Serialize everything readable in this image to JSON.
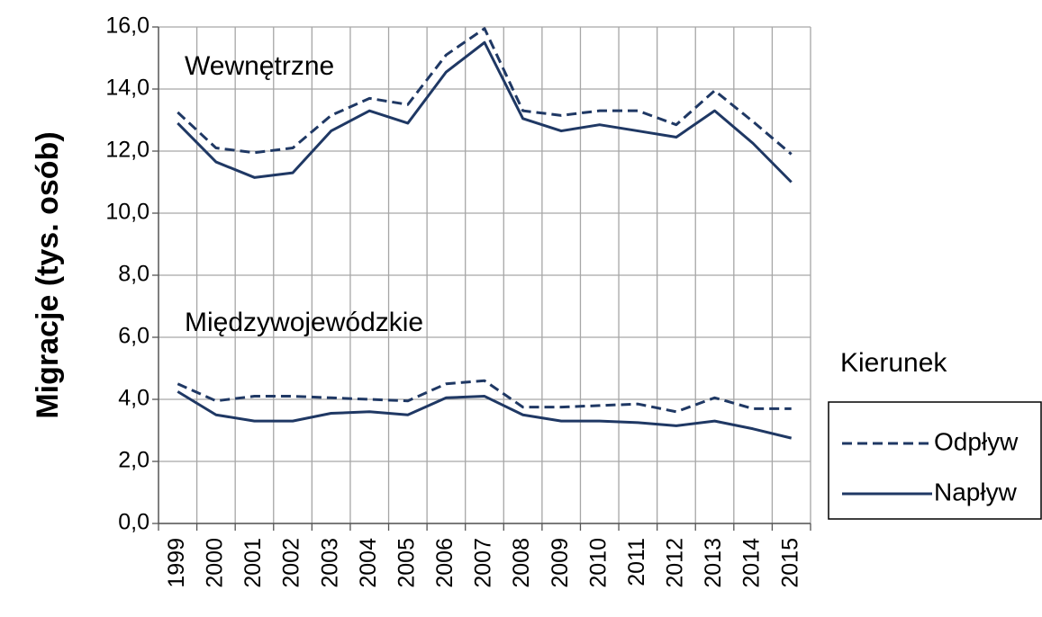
{
  "chart_data": {
    "type": "line",
    "y_label": "Migracje (tys. osób)",
    "categories": [
      "1999",
      "2000",
      "2001",
      "2002",
      "2003",
      "2004",
      "2005",
      "2006",
      "2007",
      "2008",
      "2009",
      "2010",
      "2011",
      "2012",
      "2013",
      "2014",
      "2015"
    ],
    "ylim": [
      0,
      16
    ],
    "yticks": [
      {
        "value": 0,
        "label": "0,0"
      },
      {
        "value": 2,
        "label": "2,0"
      },
      {
        "value": 4,
        "label": "4,0"
      },
      {
        "value": 6,
        "label": "6,0"
      },
      {
        "value": 8,
        "label": "8,0"
      },
      {
        "value": 10,
        "label": "10,0"
      },
      {
        "value": 12,
        "label": "12,0"
      },
      {
        "value": 14,
        "label": "14,0"
      },
      {
        "value": 16,
        "label": "16,0"
      }
    ],
    "grid": true,
    "legend": {
      "title": "Kierunek",
      "position": "right"
    },
    "series": [
      {
        "name": "Odpływ",
        "color": "#1f3864",
        "dashed": true
      },
      {
        "name": "Napływ",
        "color": "#1f3864",
        "dashed": false
      }
    ],
    "groups": [
      {
        "label": "Wewnętrzne",
        "values": [
          [
            13.25,
            12.1,
            11.95,
            12.1,
            13.15,
            13.7,
            13.5,
            15.1,
            15.95,
            13.3,
            13.15,
            13.3,
            13.3,
            12.85,
            13.95,
            12.95,
            11.9
          ],
          [
            12.9,
            11.65,
            11.15,
            11.3,
            12.65,
            13.3,
            12.9,
            14.55,
            15.5,
            13.05,
            12.65,
            12.85,
            12.65,
            12.45,
            13.3,
            12.25,
            11.0
          ]
        ]
      },
      {
        "label": "Międzywojewódzkie",
        "values": [
          [
            4.5,
            3.95,
            4.1,
            4.1,
            4.05,
            4.0,
            3.95,
            4.5,
            4.6,
            3.75,
            3.75,
            3.8,
            3.85,
            3.6,
            4.05,
            3.7,
            3.7
          ],
          [
            4.25,
            3.5,
            3.3,
            3.3,
            3.55,
            3.6,
            3.5,
            4.05,
            4.1,
            3.5,
            3.3,
            3.3,
            3.25,
            3.15,
            3.3,
            3.05,
            2.75
          ]
        ]
      }
    ]
  }
}
